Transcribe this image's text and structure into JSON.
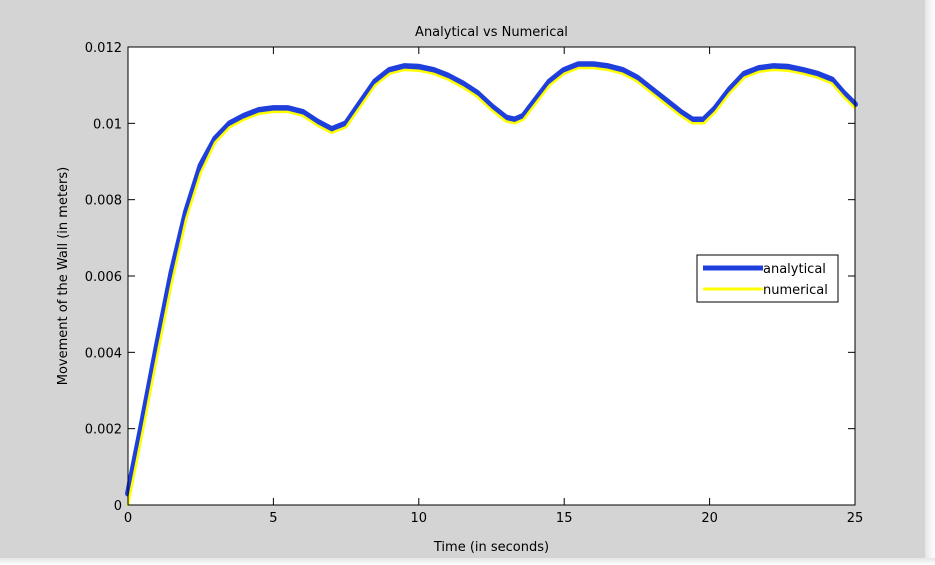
{
  "chart_data": {
    "type": "line",
    "title": "Analytical vs Numerical",
    "xlabel": "Time (in seconds)",
    "ylabel": "Movement of the Wall (in meters)",
    "xlim": [
      0,
      25
    ],
    "ylim": [
      0,
      0.012
    ],
    "xticks": [
      0,
      5,
      10,
      15,
      20,
      25
    ],
    "xtick_labels": [
      "0",
      "5",
      "10",
      "15",
      "20",
      "25"
    ],
    "yticks": [
      0,
      0.002,
      0.004,
      0.006,
      0.008,
      0.01,
      0.012
    ],
    "ytick_labels": [
      "0",
      "0.002",
      "0.004",
      "0.006",
      "0.008",
      "0.01",
      "0.012"
    ],
    "grid": false,
    "legend_position": "right",
    "series": [
      {
        "name": "analytical",
        "color": "#1f3fdc",
        "x": [
          0,
          0.5,
          1,
          1.5,
          2,
          2.5,
          3,
          3.5,
          4,
          4.5,
          5,
          5.5,
          6,
          6.5,
          7,
          7.5,
          8,
          8.5,
          9,
          9.5,
          10,
          10.5,
          11,
          11.5,
          12,
          12.5,
          13,
          13.3,
          13.6,
          14,
          14.5,
          15,
          15.5,
          16,
          16.5,
          17,
          17.5,
          18,
          18.5,
          19,
          19.4,
          19.8,
          20.2,
          20.7,
          21.2,
          21.7,
          22.2,
          22.7,
          23.2,
          23.7,
          24.2,
          24.6,
          25
        ],
        "y": [
          0.0003,
          0.0022,
          0.0042,
          0.0061,
          0.0077,
          0.0089,
          0.0096,
          0.01,
          0.0102,
          0.01035,
          0.0104,
          0.0104,
          0.0103,
          0.01005,
          0.00985,
          0.01,
          0.01055,
          0.0111,
          0.0114,
          0.0115,
          0.01148,
          0.0114,
          0.01125,
          0.01105,
          0.0108,
          0.01045,
          0.01015,
          0.0101,
          0.0102,
          0.0106,
          0.0111,
          0.0114,
          0.01155,
          0.01155,
          0.0115,
          0.0114,
          0.0112,
          0.0109,
          0.0106,
          0.0103,
          0.0101,
          0.0101,
          0.0104,
          0.0109,
          0.0113,
          0.01145,
          0.0115,
          0.01148,
          0.0114,
          0.0113,
          0.01115,
          0.0108,
          0.0105
        ]
      },
      {
        "name": "numerical",
        "color": "#ffff00",
        "x": [
          0,
          0.5,
          1,
          1.5,
          2,
          2.5,
          3,
          3.5,
          4,
          4.5,
          5,
          5.5,
          6,
          6.5,
          7,
          7.5,
          8,
          8.5,
          9,
          9.5,
          10,
          10.5,
          11,
          11.5,
          12,
          12.5,
          13,
          13.3,
          13.6,
          14,
          14.5,
          15,
          15.5,
          16,
          16.5,
          17,
          17.5,
          18,
          18.5,
          19,
          19.4,
          19.8,
          20.2,
          20.7,
          21.2,
          21.7,
          22.2,
          22.7,
          23.2,
          23.7,
          24.2,
          24.6,
          25
        ],
        "y": [
          0,
          0.0019,
          0.0039,
          0.0058,
          0.0075,
          0.0087,
          0.0095,
          0.0099,
          0.0101,
          0.01025,
          0.0103,
          0.0103,
          0.0102,
          0.00995,
          0.00975,
          0.0099,
          0.01045,
          0.011,
          0.0113,
          0.0114,
          0.01138,
          0.0113,
          0.01115,
          0.01095,
          0.0107,
          0.01035,
          0.01005,
          0.01,
          0.0101,
          0.0105,
          0.011,
          0.0113,
          0.01145,
          0.01145,
          0.0114,
          0.0113,
          0.0111,
          0.0108,
          0.0105,
          0.0102,
          0.01,
          0.01,
          0.0103,
          0.0108,
          0.0112,
          0.01135,
          0.0114,
          0.01138,
          0.0113,
          0.0112,
          0.01105,
          0.0107,
          0.0104
        ]
      }
    ]
  }
}
